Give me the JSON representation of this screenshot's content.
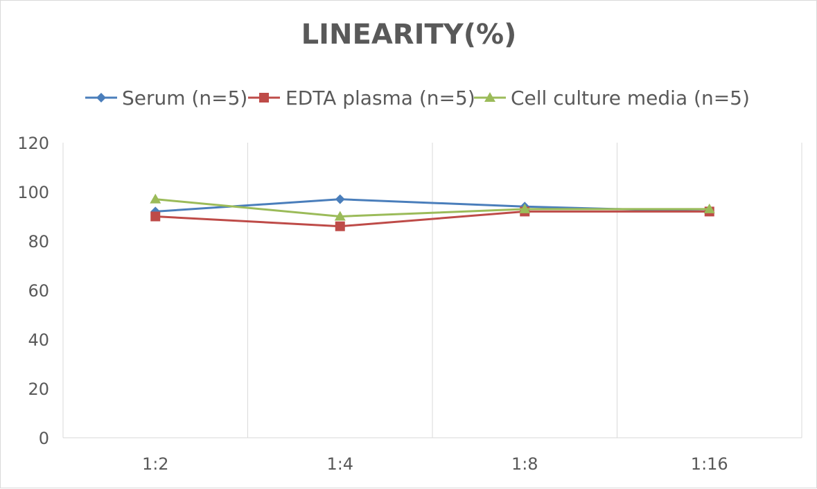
{
  "chart_data": {
    "type": "line",
    "title": "LINEARITY(%)",
    "xlabel": "",
    "ylabel": "",
    "categories": [
      "1:2",
      "1:4",
      "1:8",
      "1:16"
    ],
    "ylim": [
      0,
      120
    ],
    "yticks": [
      0,
      20,
      40,
      60,
      80,
      100,
      120
    ],
    "grid": "vertical",
    "legend_position": "top",
    "series": [
      {
        "name": "Serum (n=5)",
        "values": [
          92,
          97,
          94,
          92
        ],
        "color": "#4a7ebb",
        "marker": "diamond"
      },
      {
        "name": "EDTA plasma (n=5)",
        "values": [
          90,
          86,
          92,
          92
        ],
        "color": "#be4b48",
        "marker": "square"
      },
      {
        "name": "Cell culture media (n=5)",
        "values": [
          97,
          90,
          93,
          93
        ],
        "color": "#9bbb59",
        "marker": "triangle"
      }
    ]
  }
}
